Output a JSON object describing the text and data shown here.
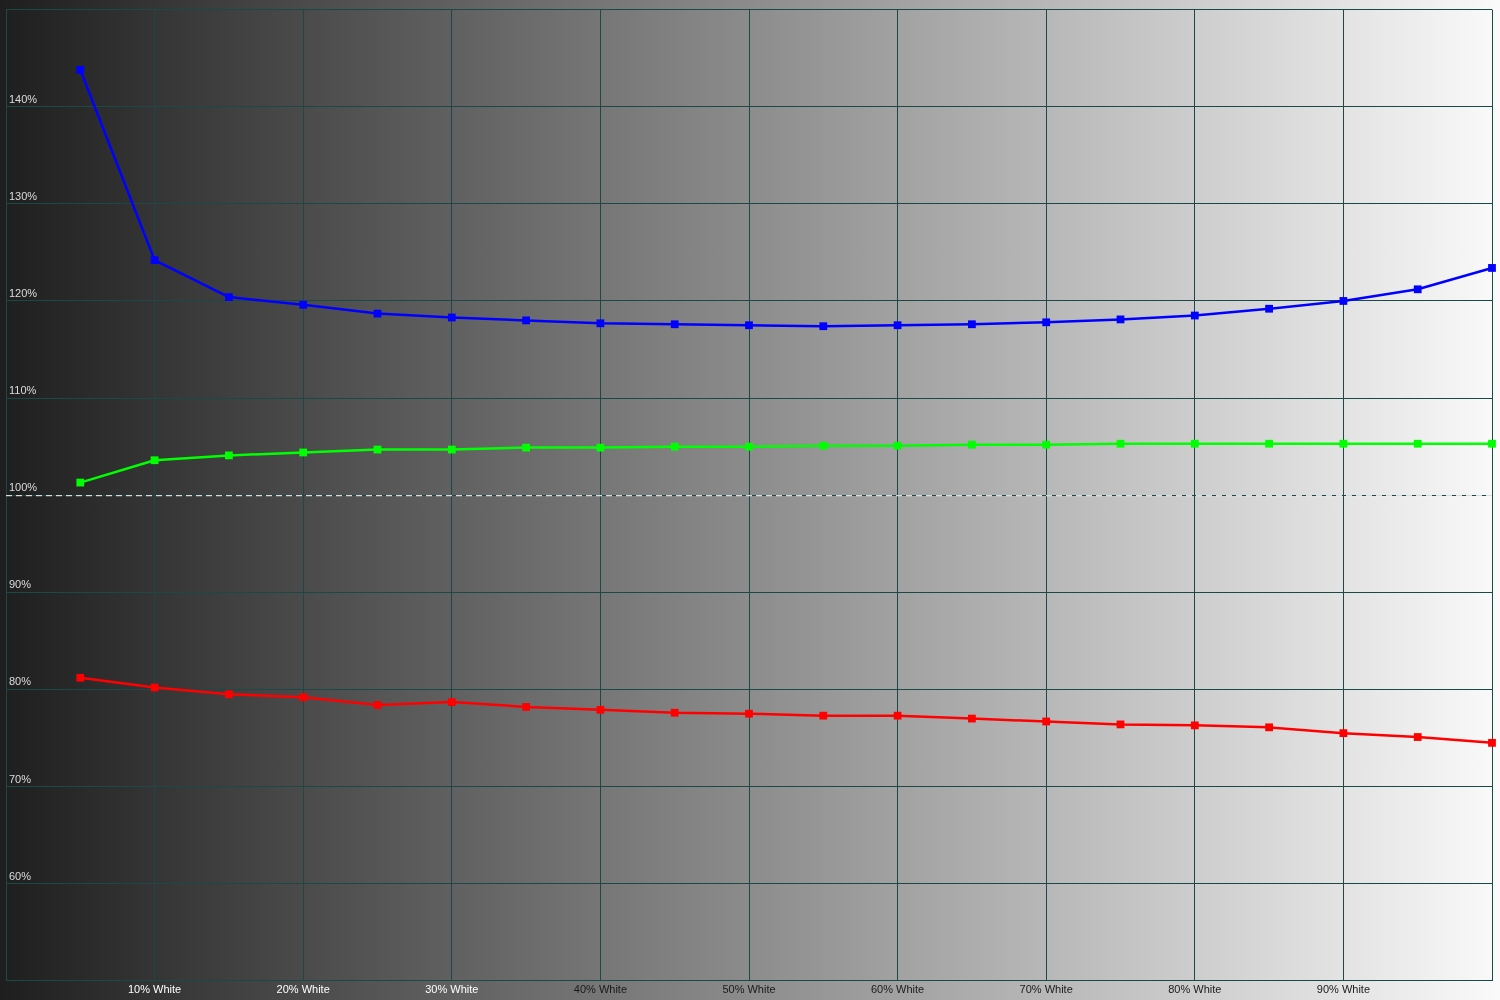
{
  "chart_data": {
    "type": "line",
    "x": [
      5,
      10,
      15,
      20,
      25,
      30,
      35,
      40,
      45,
      50,
      55,
      60,
      65,
      70,
      75,
      80,
      85,
      90,
      95,
      100
    ],
    "series": [
      {
        "color": "#0000ff",
        "values": [
          143.8,
          124.2,
          120.4,
          119.6,
          118.7,
          118.3,
          118.0,
          117.7,
          117.6,
          117.5,
          117.4,
          117.5,
          117.6,
          117.8,
          118.1,
          118.5,
          119.2,
          120.0,
          121.2,
          123.4
        ]
      },
      {
        "color": "#00ff00",
        "values": [
          101.3,
          103.6,
          104.1,
          104.4,
          104.7,
          104.7,
          104.9,
          104.9,
          105.0,
          105.0,
          105.1,
          105.1,
          105.2,
          105.2,
          105.3,
          105.3,
          105.3,
          105.3,
          105.3,
          105.3
        ]
      },
      {
        "color": "#ff0000",
        "values": [
          81.2,
          80.2,
          79.5,
          79.2,
          78.4,
          78.7,
          78.2,
          77.9,
          77.6,
          77.5,
          77.3,
          77.3,
          77.0,
          76.7,
          76.4,
          76.3,
          76.1,
          75.5,
          75.1,
          74.5
        ]
      }
    ],
    "xlim": [
      0,
      100
    ],
    "xticks": [
      {
        "value": 0,
        "label": null
      },
      {
        "value": 10,
        "label": "10% White"
      },
      {
        "value": 20,
        "label": "20% White"
      },
      {
        "value": 30,
        "label": "30% White"
      },
      {
        "value": 40,
        "label": "40% White"
      },
      {
        "value": 50,
        "label": "50% White"
      },
      {
        "value": 60,
        "label": "60% White"
      },
      {
        "value": 70,
        "label": "70% White"
      },
      {
        "value": 80,
        "label": "80% White"
      },
      {
        "value": 90,
        "label": "90% White"
      },
      {
        "value": 100,
        "label": null
      }
    ],
    "ylim": [
      50,
      150
    ],
    "yticks": [
      {
        "value": 50,
        "label": null
      },
      {
        "value": 60,
        "label": "60%"
      },
      {
        "value": 70,
        "label": "70%"
      },
      {
        "value": 80,
        "label": "80%"
      },
      {
        "value": 90,
        "label": "90%"
      },
      {
        "value": 100,
        "label": "100%"
      },
      {
        "value": 110,
        "label": "110%"
      },
      {
        "value": 120,
        "label": "120%"
      },
      {
        "value": 130,
        "label": "130%"
      },
      {
        "value": 140,
        "label": "140%"
      },
      {
        "value": 150,
        "label": null
      }
    ],
    "grid": true,
    "marker": "square",
    "line_style": "solid",
    "ref_lines": [
      {
        "axis": "y",
        "value": 100,
        "color": "#ffffff",
        "line_style": "dashed"
      }
    ]
  }
}
